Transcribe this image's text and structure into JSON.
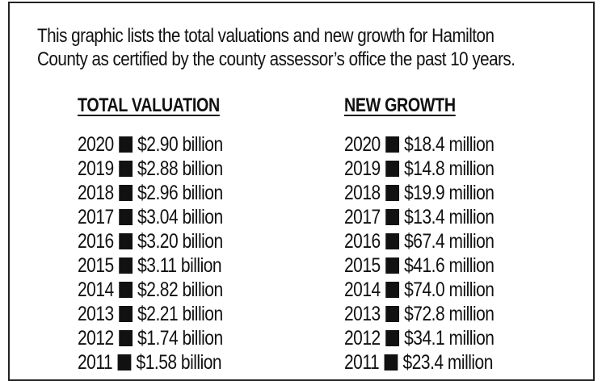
{
  "intro": {
    "line1": "This graphic lists the total valuations and new growth for Hamilton",
    "line2": "County as certified by the county assessor’s office the past 10 years."
  },
  "total_valuation": {
    "heading": "TOTAL VALUATION",
    "rows": [
      {
        "year": "2020",
        "value": "$2.90 billion"
      },
      {
        "year": "2019",
        "value": "$2.88 billion"
      },
      {
        "year": "2018",
        "value": "$2.96 billion"
      },
      {
        "year": "2017",
        "value": "$3.04 billion"
      },
      {
        "year": "2016",
        "value": "$3.20 billion"
      },
      {
        "year": "2015",
        "value": "$3.11 billion"
      },
      {
        "year": "2014",
        "value": "$2.82 billion"
      },
      {
        "year": "2013",
        "value": "$2.21 billion"
      },
      {
        "year": "2012",
        "value": "$1.74 billion"
      },
      {
        "year": "2011",
        "value": "$1.58 billion"
      }
    ]
  },
  "new_growth": {
    "heading": "NEW GROWTH",
    "rows": [
      {
        "year": "2020",
        "value": "$18.4 million"
      },
      {
        "year": "2019",
        "value": "$14.8 million"
      },
      {
        "year": "2018",
        "value": "$19.9 million"
      },
      {
        "year": "2017",
        "value": "$13.4 million"
      },
      {
        "year": "2016",
        "value": "$67.4 million"
      },
      {
        "year": "2015",
        "value": "$41.6 million"
      },
      {
        "year": "2014",
        "value": "$74.0 million"
      },
      {
        "year": "2013",
        "value": "$72.8 million"
      },
      {
        "year": "2012",
        "value": "$34.1 million"
      },
      {
        "year": "2011",
        "value": "$23.4 million"
      }
    ]
  },
  "colors": {
    "text": "#111111",
    "border": "#222222",
    "background": "#ffffff"
  }
}
